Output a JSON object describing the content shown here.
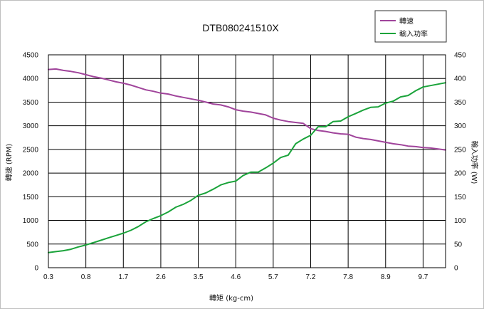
{
  "chart_data": {
    "type": "line",
    "title": "DTB080241510X",
    "xlabel": "轉矩 (kg-cm)",
    "ylabel_left": "轉速 (RPM)",
    "ylabel_right": "輸入功率 (W)",
    "xlim": [
      0.3,
      10.3
    ],
    "ylim_left": [
      0,
      4500
    ],
    "ylim_right": [
      0,
      450
    ],
    "x_ticks": [
      "0.3",
      "0.8",
      "1.7",
      "2.6",
      "3.5",
      "4.6",
      "5.7",
      "7.2",
      "7.8",
      "8.9",
      "9.7"
    ],
    "y_ticks_left": [
      "0",
      "500",
      "1000",
      "1500",
      "2000",
      "2500",
      "3000",
      "3500",
      "4000",
      "4500"
    ],
    "y_ticks_right": [
      "0",
      "50",
      "100",
      "150",
      "200",
      "250",
      "300",
      "350",
      "400",
      "450"
    ],
    "grid": true,
    "legend_position": "top-right",
    "series": [
      {
        "name": "轉速",
        "axis": "left",
        "color": "#a0449b",
        "values": [
          4190,
          4200,
          4170,
          4150,
          4120,
          4080,
          4040,
          4010,
          3970,
          3930,
          3900,
          3860,
          3810,
          3760,
          3730,
          3690,
          3670,
          3630,
          3600,
          3570,
          3540,
          3500,
          3460,
          3440,
          3400,
          3340,
          3310,
          3290,
          3260,
          3230,
          3160,
          3120,
          3090,
          3070,
          3050,
          2940,
          2900,
          2880,
          2850,
          2830,
          2820,
          2760,
          2730,
          2710,
          2680,
          2650,
          2620,
          2600,
          2570,
          2560,
          2540,
          2530,
          2510,
          2490
        ]
      },
      {
        "name": "輸入功率",
        "axis": "right",
        "color": "#1aa33a",
        "values": [
          32,
          34,
          36,
          39,
          44,
          48,
          53,
          58,
          63,
          68,
          73,
          79,
          87,
          97,
          104,
          110,
          118,
          128,
          134,
          142,
          153,
          158,
          166,
          175,
          180,
          183,
          195,
          202,
          202,
          211,
          221,
          233,
          238,
          262,
          272,
          280,
          298,
          298,
          309,
          310,
          319,
          326,
          333,
          339,
          340,
          348,
          352,
          361,
          364,
          374,
          382,
          385,
          388,
          391
        ]
      }
    ]
  }
}
